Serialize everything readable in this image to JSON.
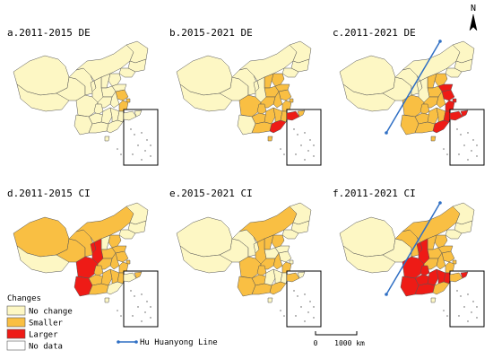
{
  "panels": [
    {
      "title": "a.2011-2015 DE",
      "hu_line": false,
      "provinces": {
        "JS": "smaller",
        "SH": "smaller",
        "ZJ": "smaller"
      }
    },
    {
      "title": "b.2015-2021 DE",
      "hu_line": false,
      "provinces": {
        "SC": "smaller",
        "HB": "smaller",
        "HN": "smaller",
        "AH": "smaller",
        "JX": "smaller",
        "FJ": "smaller",
        "ZJ": "smaller",
        "JS": "smaller",
        "SH": "smaller",
        "SD": "smaller",
        "HE": "smaller",
        "HA": "smaller",
        "GZ": "smaller",
        "GX": "smaller",
        "CQ": "smaller",
        "SX": "smaller",
        "HI": "smaller",
        "GD": "larger"
      }
    },
    {
      "title": "c.2011-2021 DE",
      "hu_line": true,
      "provinces": {
        "SD": "larger",
        "JS": "larger",
        "ZJ": "larger",
        "SH": "larger",
        "GD": "larger",
        "BJ": "larger",
        "TJ": "larger",
        "FJ": "larger",
        "HE": "smaller",
        "HA": "smaller",
        "AH": "smaller",
        "HB": "smaller",
        "HN": "smaller",
        "JX": "smaller",
        "SC": "smaller",
        "CQ": "smaller",
        "GZ": "smaller",
        "GX": "smaller",
        "YN": "smaller",
        "SX": "smaller",
        "HI": "smaller"
      }
    },
    {
      "title": "d.2011-2015 CI",
      "hu_line": false,
      "provinces": {
        "XJ": "smaller",
        "QH": "smaller",
        "SN": "larger",
        "NX": "larger",
        "SC": "larger",
        "YN": "larger",
        "GS": "smaller",
        "NM": "smaller",
        "HE": "smaller",
        "SD": "smaller",
        "JS": "smaller",
        "AH": "smaller",
        "HA": "smaller",
        "HB": "smaller",
        "CQ": "smaller",
        "GZ": "smaller",
        "GX": "smaller",
        "FJ": "smaller",
        "ZJ": "smaller",
        "SH": "smaller",
        "HN": "smaller",
        "JX": "smaller"
      }
    },
    {
      "title": "e.2015-2021 CI",
      "hu_line": false,
      "provinces": {
        "NM": "smaller",
        "SX": "smaller",
        "HE": "smaller",
        "SN": "smaller",
        "SC": "smaller",
        "CQ": "smaller",
        "GZ": "smaller",
        "YN": "smaller",
        "HB": "smaller",
        "AH": "smaller",
        "GX": "smaller",
        "ZJ": "smaller",
        "GD": "smaller"
      }
    },
    {
      "title": "f.2011-2021 CI",
      "hu_line": true,
      "provinces": {
        "SN": "larger",
        "SC": "larger",
        "YN": "larger",
        "GZ": "larger",
        "GX": "larger",
        "CQ": "larger",
        "HN": "larger",
        "JX": "larger",
        "NX": "larger",
        "FJ": "larger",
        "HE": "smaller",
        "SD": "smaller",
        "HA": "smaller",
        "HB": "smaller",
        "AH": "smaller",
        "JS": "smaller",
        "ZJ": "smaller",
        "SH": "smaller",
        "GS": "smaller",
        "NM": "smaller",
        "SX": "smaller",
        "GD": "smaller"
      }
    }
  ],
  "legend": {
    "title": "Changes",
    "items": [
      {
        "key": "no_change",
        "label": "No change",
        "color": "#fdf7c4"
      },
      {
        "key": "smaller",
        "label": "Smaller",
        "color": "#f9bf43"
      },
      {
        "key": "larger",
        "label": "Larger",
        "color": "#ee1b16"
      },
      {
        "key": "no_data",
        "label": "No data",
        "color": "#ffffff"
      }
    ]
  },
  "hu_line_label": "Hu Huanyong Line",
  "hu_line_color": "#2f6fc4",
  "scale_bar": {
    "start": "0",
    "end": "1000 km"
  },
  "north_arrow": "N"
}
